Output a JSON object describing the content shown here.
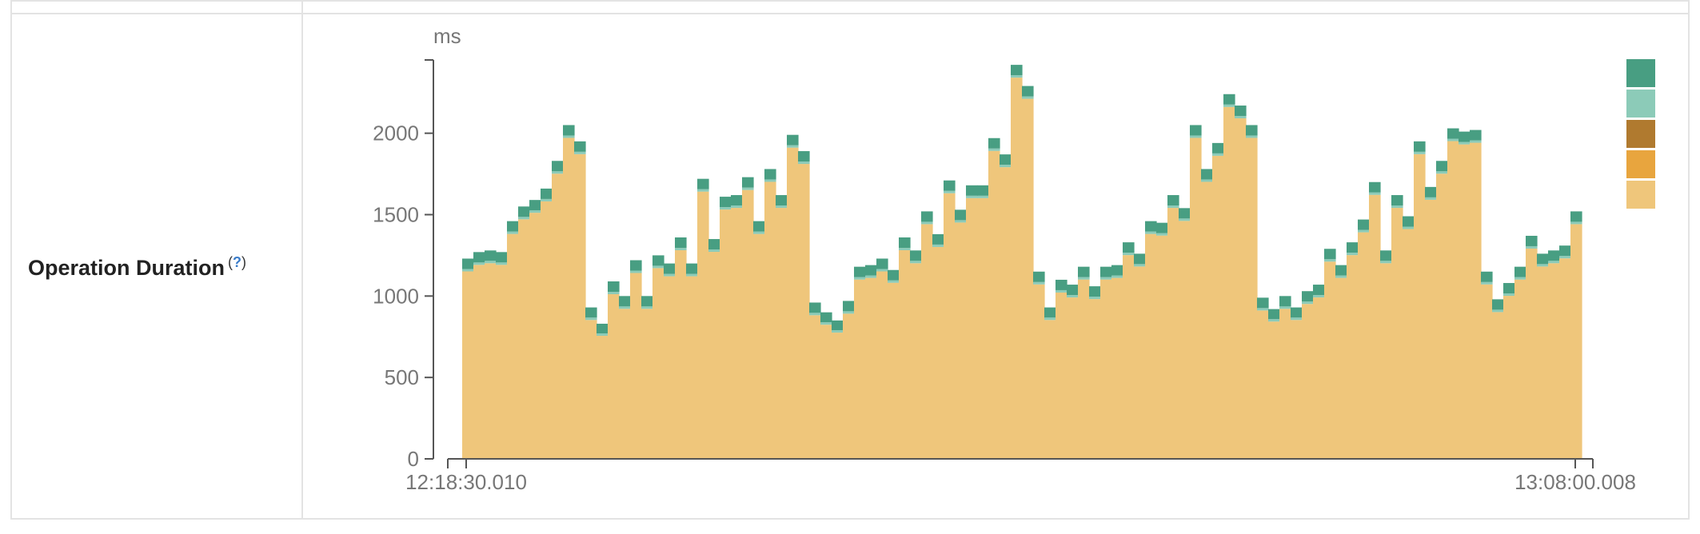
{
  "panel": {
    "label": "Operation Duration",
    "help_marker": "?"
  },
  "chart_data": {
    "type": "bar",
    "stacked": true,
    "ylabel": "ms",
    "ylim": [
      0,
      2450
    ],
    "yticks": [
      0,
      500,
      1000,
      1500,
      2000
    ],
    "ytick_labels": [
      "0",
      "500",
      "1000",
      "1500",
      "2000"
    ],
    "x_start_label": "12:18:30.010",
    "x_end_label": "13:08:00.008",
    "legend_placement": "right",
    "colors": {
      "series_1": "#489e82",
      "series_2": "#8ccbb8",
      "series_3": "#b07a2f",
      "series_4": "#e8a53e",
      "series_5": "#efc67b"
    },
    "series": [
      {
        "values": [
          1230,
          1270,
          1280,
          1270,
          1460,
          1550,
          1590,
          1660,
          1830,
          2050,
          1950,
          930,
          830,
          1090,
          1000,
          1220,
          1000,
          1250,
          1200,
          1360,
          1200,
          1720,
          1350,
          1610,
          1620,
          1730,
          1460,
          1780,
          1620,
          1990,
          1890,
          960,
          900,
          850,
          970,
          1180,
          1190,
          1230,
          1160,
          1360,
          1280,
          1520,
          1380,
          1710,
          1530,
          1680,
          1680,
          1970,
          1870,
          2420,
          2290,
          1150,
          930,
          1100,
          1070,
          1180,
          1060,
          1180,
          1190,
          1330,
          1260,
          1460,
          1450,
          1620,
          1540,
          2050,
          1780,
          1940,
          2240,
          2170,
          2050,
          990,
          920,
          1000,
          930,
          1030,
          1070,
          1290,
          1190,
          1330,
          1470,
          1700,
          1280,
          1620,
          1490,
          1950,
          1670,
          1830,
          2030,
          2010,
          2020,
          1150,
          980,
          1080,
          1180,
          1370,
          1260,
          1280,
          1310,
          1520
        ]
      }
    ]
  }
}
